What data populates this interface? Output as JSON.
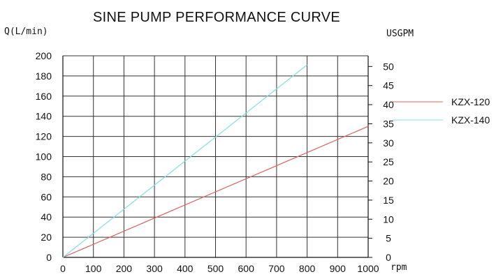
{
  "chart_data": {
    "type": "line",
    "title": "SINE PUMP PERFORMANCE CURVE",
    "ylabel": "Q(L/min)",
    "y2label": "USGPM",
    "xlabel": "rpm",
    "xlim": [
      0,
      1000
    ],
    "ylim": [
      0,
      200
    ],
    "y2lim": [
      0,
      52.8
    ],
    "x_ticks": [
      0,
      100,
      200,
      300,
      400,
      500,
      600,
      700,
      800,
      900,
      1000
    ],
    "y_ticks": [
      0,
      20,
      40,
      60,
      80,
      100,
      120,
      140,
      160,
      180,
      200
    ],
    "y2_ticks": [
      0,
      5,
      10,
      15,
      20,
      25,
      30,
      35,
      40,
      45,
      50
    ],
    "grid": true,
    "legend_position": "right",
    "series": [
      {
        "name": "KZX-120",
        "color": "#e06060",
        "x": [
          0,
          1000
        ],
        "y": [
          0,
          130
        ]
      },
      {
        "name": "KZX-140",
        "color": "#7fdfe6",
        "x": [
          0,
          800
        ],
        "y": [
          0,
          191
        ]
      }
    ]
  }
}
